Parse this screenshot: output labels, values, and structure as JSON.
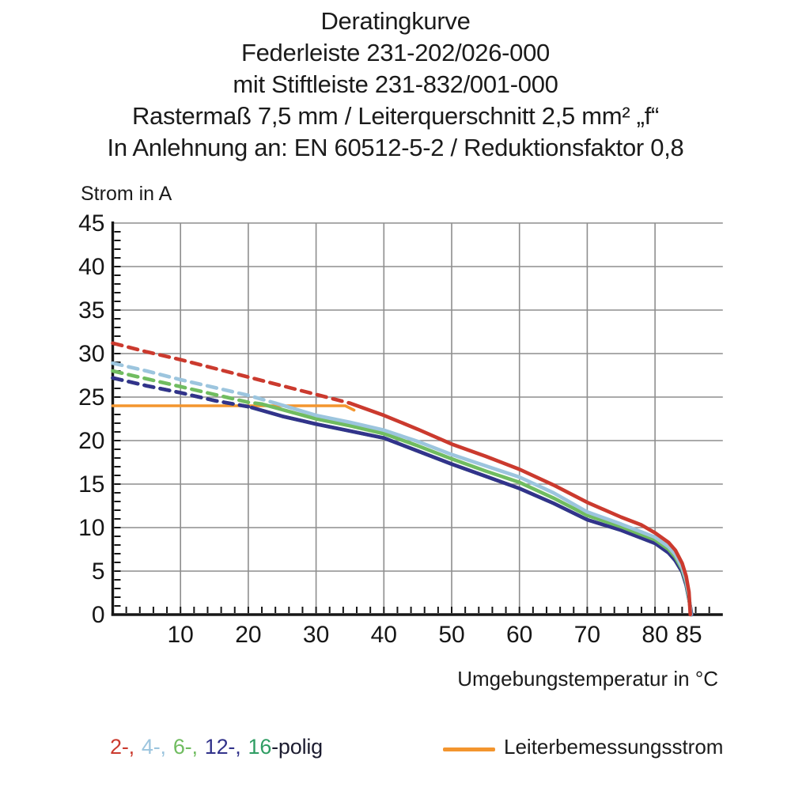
{
  "title_block": {
    "line1": "Deratingkurve",
    "line2": "Federleiste 231-202/026-000",
    "line3": "mit Stiftleiste 231-832/001-000",
    "line4": "Rastermaß 7,5 mm / Leiterquerschnitt 2,5 mm² „f“",
    "line5": "In Anlehnung an: EN 60512-5-2 / Reduktionsfaktor 0,8"
  },
  "chart_data": {
    "type": "line",
    "title": "Deratingkurve",
    "ylabel": "Strom in A",
    "xlabel": "Umgebungstemperatur in °C",
    "xlim": [
      0,
      90
    ],
    "ylim": [
      0,
      45
    ],
    "x_ticks": [
      10,
      20,
      30,
      40,
      50,
      60,
      70,
      80,
      85
    ],
    "y_ticks": [
      0,
      5,
      10,
      15,
      20,
      25,
      30,
      35,
      40,
      45
    ],
    "grid": true,
    "grid_color": "#8e8e8e",
    "axis_color": "#161616",
    "rated_current_A": 24,
    "series": [
      {
        "name": "2-polig",
        "poles": 2,
        "color": "#cb3a2e",
        "style": "dashed-then-solid",
        "dashed_points": [
          [
            0,
            31.2
          ],
          [
            5,
            30.2
          ],
          [
            10,
            29.3
          ],
          [
            15,
            28.3
          ],
          [
            20,
            27.3
          ],
          [
            25,
            26.3
          ],
          [
            30,
            25.3
          ],
          [
            35,
            24.3
          ]
        ],
        "solid_points": [
          [
            35,
            24.3
          ],
          [
            40,
            22.9
          ],
          [
            45,
            21.3
          ],
          [
            50,
            19.6
          ],
          [
            55,
            18.2
          ],
          [
            60,
            16.7
          ],
          [
            65,
            14.9
          ],
          [
            70,
            12.9
          ],
          [
            75,
            11.2
          ],
          [
            78,
            10.3
          ],
          [
            80,
            9.4
          ],
          [
            82,
            8.3
          ],
          [
            83,
            7.4
          ],
          [
            84,
            5.9
          ],
          [
            84.6,
            4.4
          ],
          [
            85,
            2.6
          ],
          [
            85.2,
            0
          ]
        ]
      },
      {
        "name": "4-polig",
        "poles": 4,
        "color": "#9cc5de",
        "style": "dashed-then-solid",
        "dashed_points": [
          [
            0,
            28.9
          ],
          [
            5,
            28.0
          ],
          [
            10,
            27.0
          ],
          [
            15,
            26.1
          ],
          [
            20,
            25.2
          ],
          [
            24,
            24.3
          ]
        ],
        "solid_points": [
          [
            24,
            24.3
          ],
          [
            30,
            22.9
          ],
          [
            35,
            22.1
          ],
          [
            40,
            21.2
          ],
          [
            45,
            19.9
          ],
          [
            50,
            18.4
          ],
          [
            55,
            17.1
          ],
          [
            60,
            15.8
          ],
          [
            65,
            14.0
          ],
          [
            70,
            11.8
          ],
          [
            75,
            10.4
          ],
          [
            78,
            9.5
          ],
          [
            80,
            8.9
          ],
          [
            82,
            7.8
          ],
          [
            83,
            6.9
          ],
          [
            84,
            5.4
          ],
          [
            84.6,
            3.9
          ],
          [
            85,
            2.2
          ],
          [
            85.3,
            0
          ]
        ]
      },
      {
        "name": "6-polig",
        "poles": 6,
        "color": "#70bc60",
        "style": "dashed-then-solid",
        "dashed_points": [
          [
            0,
            28.0
          ],
          [
            5,
            27.1
          ],
          [
            10,
            26.2
          ],
          [
            15,
            25.3
          ],
          [
            20,
            24.4
          ],
          [
            22,
            24.2
          ]
        ],
        "solid_points": [
          [
            22,
            24.2
          ],
          [
            30,
            22.5
          ],
          [
            35,
            21.7
          ],
          [
            40,
            20.8
          ],
          [
            45,
            19.4
          ],
          [
            50,
            17.9
          ],
          [
            55,
            16.5
          ],
          [
            60,
            15.2
          ],
          [
            65,
            13.4
          ],
          [
            70,
            11.4
          ],
          [
            75,
            10.1
          ],
          [
            78,
            9.2
          ],
          [
            80,
            8.6
          ],
          [
            82,
            7.5
          ],
          [
            83,
            6.6
          ],
          [
            84,
            5.2
          ],
          [
            84.6,
            3.7
          ],
          [
            85,
            2.0
          ],
          [
            85.3,
            0
          ]
        ]
      },
      {
        "name": "12-polig",
        "poles": 12,
        "color": "#32338b",
        "style": "dashed-then-solid",
        "dashed_points": [
          [
            0,
            27.2
          ],
          [
            5,
            26.3
          ],
          [
            10,
            25.5
          ],
          [
            15,
            24.6
          ],
          [
            20,
            23.9
          ]
        ],
        "solid_points": [
          [
            20.5,
            23.8
          ],
          [
            25,
            22.8
          ],
          [
            30,
            21.9
          ],
          [
            35,
            21.1
          ],
          [
            40,
            20.3
          ],
          [
            45,
            18.8
          ],
          [
            50,
            17.3
          ],
          [
            55,
            15.9
          ],
          [
            60,
            14.5
          ],
          [
            65,
            12.8
          ],
          [
            70,
            10.9
          ],
          [
            75,
            9.7
          ],
          [
            78,
            8.8
          ],
          [
            80,
            8.2
          ],
          [
            82,
            7.1
          ],
          [
            83,
            6.2
          ],
          [
            84,
            4.9
          ],
          [
            84.6,
            3.4
          ],
          [
            85,
            1.8
          ],
          [
            85.4,
            0
          ]
        ]
      },
      {
        "name": "16-polig",
        "poles": 16,
        "color": "#2f9d63",
        "style": "dashed-then-solid",
        "visually_overlaps": "12-polig",
        "dashed_points": [
          [
            0,
            27.2
          ],
          [
            5,
            26.3
          ],
          [
            10,
            25.5
          ],
          [
            15,
            24.6
          ],
          [
            20,
            23.9
          ]
        ],
        "solid_points": [
          [
            20.5,
            23.8
          ],
          [
            25,
            22.8
          ],
          [
            30,
            21.9
          ],
          [
            35,
            21.1
          ],
          [
            40,
            20.3
          ],
          [
            45,
            18.8
          ],
          [
            50,
            17.3
          ],
          [
            55,
            15.9
          ],
          [
            60,
            14.5
          ],
          [
            65,
            12.8
          ],
          [
            70,
            10.9
          ],
          [
            75,
            9.7
          ],
          [
            78,
            8.8
          ],
          [
            80,
            8.2
          ],
          [
            82,
            7.1
          ],
          [
            83,
            6.2
          ],
          [
            84,
            4.9
          ],
          [
            84.6,
            3.4
          ],
          [
            85,
            1.8
          ],
          [
            85.4,
            0
          ]
        ]
      },
      {
        "name": "Leiterbemessungsstrom",
        "color": "#f3952e",
        "style": "solid",
        "solid_points": [
          [
            0,
            24
          ],
          [
            34.3,
            24
          ],
          [
            35.6,
            23.5
          ]
        ]
      }
    ]
  },
  "legend": {
    "poles": [
      {
        "text": "2-,",
        "color": "#cb3a2e"
      },
      {
        "text": "4-,",
        "color": "#9cc5de"
      },
      {
        "text": "6-,",
        "color": "#70bc60"
      },
      {
        "text": "12-,",
        "color": "#32338b"
      },
      {
        "text": "16",
        "color": "#2f9d63"
      },
      {
        "text": "-polig",
        "color": "#1d1d30"
      }
    ],
    "rated": {
      "label": "Leiterbemessungsstrom",
      "line_color": "#f3952e"
    }
  }
}
